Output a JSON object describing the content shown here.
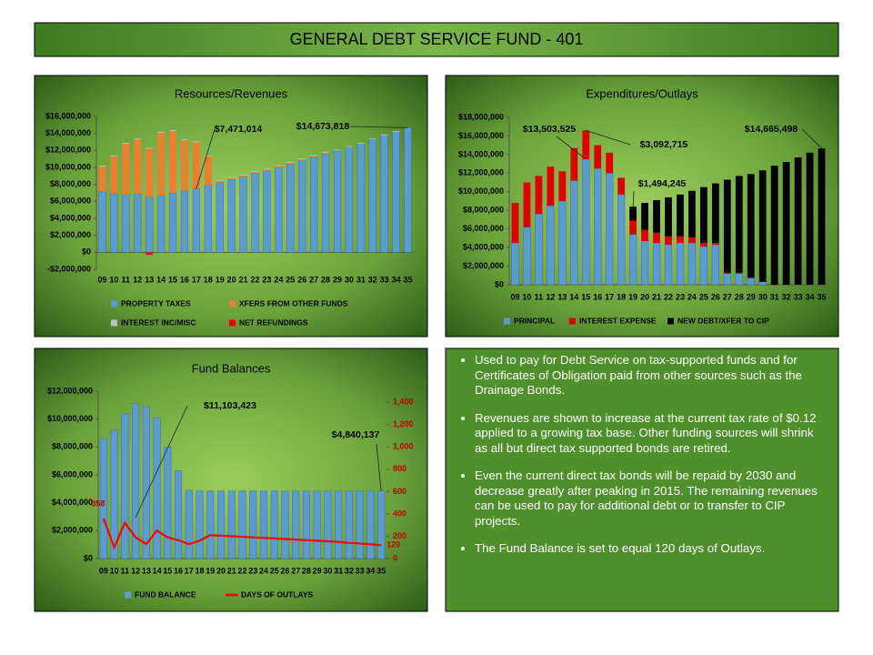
{
  "header": {
    "title": "GENERAL DEBT SERVICE FUND - 401"
  },
  "bullets": [
    "Used to pay for Debt Service on tax-supported funds and for Certificates of Obligation paid from other sources such as the Drainage Bonds.",
    "Revenues are shown to increase at the current tax rate of $0.12 applied to a growing tax base. Other funding sources will shrink as all but direct tax supported bonds are retired.",
    "Even the current direct tax bonds will be repaid by 2030 and decrease greatly after peaking in 2015. The remaining revenues can be used to pay for additional debt or to transfer to CIP projects.",
    "The Fund Balance is set to equal 120 days of Outlays."
  ],
  "chart_data": [
    {
      "type": "stacked_bar",
      "title": "Resources/Revenues",
      "categories": [
        "09",
        "10",
        "11",
        "12",
        "13",
        "14",
        "15",
        "16",
        "17",
        "18",
        "19",
        "20",
        "21",
        "22",
        "23",
        "24",
        "25",
        "26",
        "27",
        "28",
        "29",
        "30",
        "31",
        "32",
        "33",
        "34",
        "35"
      ],
      "series": [
        {
          "name": "PROPERTY TAXES",
          "color": "#5b9bd5",
          "values": [
            7200000,
            6900000,
            6800000,
            6900000,
            6500000,
            6700000,
            7000000,
            7300000,
            7471014,
            7900000,
            8200000,
            8600000,
            8900000,
            9300000,
            9600000,
            10000000,
            10400000,
            10800000,
            11200000,
            11600000,
            12000000,
            12400000,
            12800000,
            13300000,
            13800000,
            14200000,
            14673818
          ]
        },
        {
          "name": "XFERS FROM OTHER FUNDS",
          "color": "#ed7d31",
          "values": [
            2900000,
            4400000,
            6000000,
            6400000,
            5700000,
            7400000,
            7300000,
            5900000,
            5500000,
            3400000,
            200000,
            150000,
            150000,
            150000,
            150000,
            150000,
            150000,
            150000,
            150000,
            150000,
            0,
            0,
            0,
            0,
            0,
            0,
            0
          ]
        },
        {
          "name": "INTEREST INC/MISC",
          "color": "#bfbfbf",
          "values": [
            100000,
            100000,
            100000,
            100000,
            100000,
            100000,
            100000,
            100000,
            100000,
            100000,
            100000,
            100000,
            100000,
            100000,
            100000,
            100000,
            100000,
            100000,
            100000,
            100000,
            100000,
            100000,
            100000,
            100000,
            100000,
            100000,
            0
          ]
        },
        {
          "name": "NET REFUNDINGS",
          "color": "#ff0000",
          "values": [
            0,
            0,
            0,
            0,
            -300000,
            0,
            0,
            0,
            0,
            0,
            0,
            0,
            0,
            0,
            0,
            0,
            0,
            0,
            0,
            0,
            0,
            0,
            0,
            0,
            0,
            0,
            0
          ]
        }
      ],
      "ylim": [
        -2000000,
        16000000
      ],
      "yticks": [
        {
          "value": -2000000,
          "label": "-$2,000,000"
        },
        {
          "value": 0,
          "label": "$0"
        },
        {
          "value": 2000000,
          "label": "$2,000,000"
        },
        {
          "value": 4000000,
          "label": "$4,000,000"
        },
        {
          "value": 6000000,
          "label": "$6,000,000"
        },
        {
          "value": 8000000,
          "label": "$8,000,000"
        },
        {
          "value": 10000000,
          "label": "$10,000,000"
        },
        {
          "value": 12000000,
          "label": "$12,000,000"
        },
        {
          "value": 14000000,
          "label": "$14,000,000"
        },
        {
          "value": 16000000,
          "label": "$16,000,000"
        }
      ],
      "annotations": [
        "$7,471,014",
        "$14,673,818"
      ]
    },
    {
      "type": "stacked_bar",
      "title": "Expenditures/Outlays",
      "categories": [
        "09",
        "10",
        "11",
        "12",
        "13",
        "14",
        "15",
        "16",
        "17",
        "18",
        "19",
        "20",
        "21",
        "22",
        "23",
        "24",
        "25",
        "26",
        "27",
        "28",
        "29",
        "30",
        "31",
        "32",
        "33",
        "34",
        "35"
      ],
      "series": [
        {
          "name": "PRINCIPAL",
          "color": "#5b9bd5",
          "values": [
            4500000,
            6200000,
            7600000,
            8500000,
            9000000,
            11200000,
            13503525,
            12500000,
            12000000,
            9700000,
            5400000,
            4700000,
            4500000,
            4300000,
            4500000,
            4500000,
            4100000,
            4300000,
            1200000,
            1200000,
            700000,
            300000,
            0,
            0,
            0,
            0,
            0
          ]
        },
        {
          "name": "INTEREST EXPENSE",
          "color": "#e00000",
          "values": [
            4300000,
            4800000,
            4100000,
            4200000,
            3200000,
            3500000,
            3092715,
            2500000,
            2200000,
            1800000,
            1500000,
            1200000,
            1100000,
            900000,
            700000,
            600000,
            400000,
            200000,
            100000,
            100000,
            50000,
            0,
            0,
            0,
            0,
            0,
            0
          ]
        },
        {
          "name": "NEW DEBT/XFER TO CIP",
          "color": "#000000",
          "values": [
            0,
            0,
            0,
            0,
            0,
            0,
            0,
            0,
            0,
            0,
            1494245,
            2900000,
            3500000,
            4200000,
            4500000,
            5000000,
            6000000,
            6400000,
            10000000,
            10400000,
            11150000,
            12000000,
            12800000,
            13200000,
            13700000,
            14200000,
            14665498
          ]
        }
      ],
      "ylim": [
        0,
        18000000
      ],
      "yticks": [
        {
          "value": 0,
          "label": "$0"
        },
        {
          "value": 2000000,
          "label": "$2,000,000"
        },
        {
          "value": 4000000,
          "label": "$4,000,000"
        },
        {
          "value": 6000000,
          "label": "$6,000,000"
        },
        {
          "value": 8000000,
          "label": "$8,000,000"
        },
        {
          "value": 10000000,
          "label": "$10,000,000"
        },
        {
          "value": 12000000,
          "label": "$12,000,000"
        },
        {
          "value": 14000000,
          "label": "$14,000,000"
        },
        {
          "value": 16000000,
          "label": "$16,000,000"
        },
        {
          "value": 18000000,
          "label": "$18,000,000"
        }
      ],
      "annotations": [
        "$13,503,525",
        "$3,092,715",
        "$1,494,245",
        "$14,665,498"
      ]
    },
    {
      "type": "bar_line",
      "title": "Fund Balances",
      "categories": [
        "09",
        "10",
        "11",
        "12",
        "13",
        "14",
        "15",
        "16",
        "17",
        "18",
        "19",
        "20",
        "21",
        "22",
        "23",
        "24",
        "25",
        "26",
        "27",
        "28",
        "29",
        "30",
        "31",
        "32",
        "33",
        "34",
        "35"
      ],
      "series": [
        {
          "name": "FUND BALANCE",
          "color": "#5b9bd5",
          "values": [
            8600000,
            9200000,
            10400000,
            11103423,
            10900000,
            10100000,
            8000000,
            6300000,
            4900000,
            4840137,
            4840137,
            4840137,
            4840137,
            4840137,
            4840137,
            4840137,
            4840137,
            4840137,
            4840137,
            4840137,
            4840137,
            4840137,
            4840137,
            4840137,
            4840137,
            4840137,
            4840137
          ]
        },
        {
          "name": "DAYS OF OUTLAYS",
          "color": "#ff0000",
          "axis": "y2",
          "values": [
            358,
            100,
            320,
            190,
            130,
            250,
            190,
            165,
            130,
            160,
            210,
            205,
            200,
            195,
            190,
            185,
            180,
            175,
            170,
            165,
            160,
            155,
            150,
            140,
            135,
            128,
            120
          ]
        }
      ],
      "ylim": [
        0,
        12000000
      ],
      "yticks": [
        {
          "value": 0,
          "label": "$0"
        },
        {
          "value": 2000000,
          "label": "$2,000,000"
        },
        {
          "value": 4000000,
          "label": "$4,000,000"
        },
        {
          "value": 6000000,
          "label": "$6,000,000"
        },
        {
          "value": 8000000,
          "label": "$8,000,000"
        },
        {
          "value": 10000000,
          "label": "$10,000,000"
        },
        {
          "value": 12000000,
          "label": "$12,000,000"
        }
      ],
      "y2lim": [
        0,
        1500
      ],
      "y2ticks": [
        0,
        200,
        400,
        600,
        800,
        {
          "value": 1000,
          "label": "1,000"
        },
        {
          "value": 1200,
          "label": "1,200"
        },
        {
          "value": 1400,
          "label": "1,400"
        }
      ],
      "annotations": [
        "$11,103,423",
        "$4,840,137"
      ]
    }
  ]
}
